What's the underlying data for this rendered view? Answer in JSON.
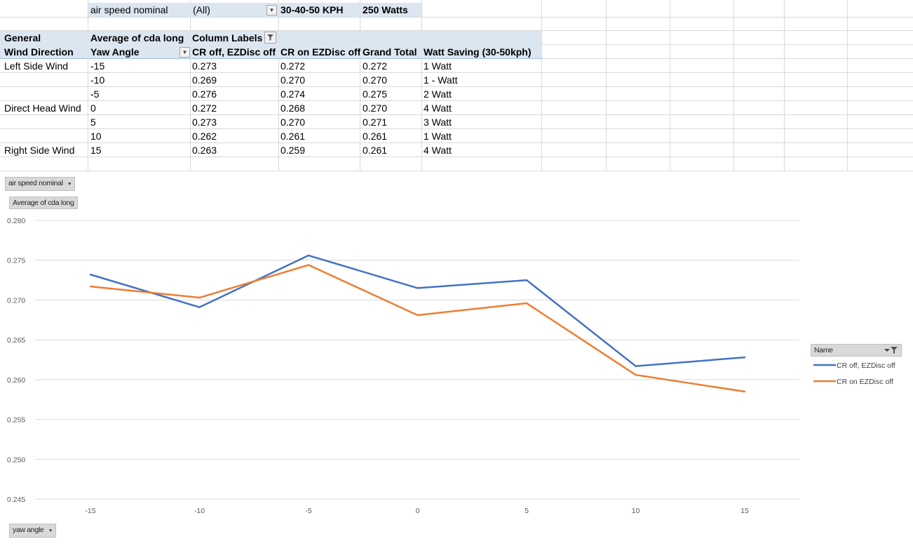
{
  "pivot_filter": {
    "field": "air speed nominal",
    "value": "(All)",
    "note1": "30-40-50 KPH",
    "note2": "250 Watts"
  },
  "pivot_header": {
    "row1": [
      "General",
      "Average of cda long",
      "Column Labels"
    ],
    "row2": [
      "Wind Direction",
      "Yaw Angle",
      "CR off, EZDisc off",
      "CR on EZDisc off",
      "Grand Total",
      "Watt Saving (30-50kph)"
    ]
  },
  "pivot_rows": [
    {
      "dir": "Left Side Wind",
      "yaw": "-15",
      "a": "0.273",
      "b": "0.272",
      "total": "0.272",
      "saving": "1 Watt"
    },
    {
      "dir": "",
      "yaw": "-10",
      "a": "0.269",
      "b": "0.270",
      "total": "0.270",
      "saving": "1 - Watt"
    },
    {
      "dir": "",
      "yaw": "-5",
      "a": "0.276",
      "b": "0.274",
      "total": "0.275",
      "saving": "2 Watt"
    },
    {
      "dir": "Direct Head Wind",
      "yaw": "0",
      "a": "0.272",
      "b": "0.268",
      "total": "0.270",
      "saving": "4 Watt"
    },
    {
      "dir": "",
      "yaw": "5",
      "a": "0.273",
      "b": "0.270",
      "total": "0.271",
      "saving": "3 Watt"
    },
    {
      "dir": "",
      "yaw": "10",
      "a": "0.262",
      "b": "0.261",
      "total": "0.261",
      "saving": "1 Watt"
    },
    {
      "dir": "Right Side Wind",
      "yaw": "15",
      "a": "0.263",
      "b": "0.259",
      "total": "0.261",
      "saving": "4 Watt"
    }
  ],
  "chart_buttons": {
    "filter": "air speed nominal",
    "value": "Average of cda long",
    "axis": "yaw angle",
    "legend_title": "Name"
  },
  "chart_data": {
    "type": "line",
    "categories": [
      "-15",
      "-10",
      "-5",
      "0",
      "5",
      "10",
      "15"
    ],
    "series": [
      {
        "name": "CR off, EZDisc off",
        "color": "#4472c4",
        "values": [
          0.2732,
          0.2691,
          0.2756,
          0.2715,
          0.2725,
          0.2617,
          0.2628
        ]
      },
      {
        "name": "CR on EZDisc off",
        "color": "#ed7d31",
        "values": [
          0.2717,
          0.2703,
          0.2744,
          0.2681,
          0.2696,
          0.2606,
          0.2585
        ]
      }
    ],
    "yticks": [
      "0.280",
      "0.275",
      "0.270",
      "0.265",
      "0.260",
      "0.255",
      "0.250",
      "0.245"
    ],
    "ylim": [
      0.245,
      0.28
    ],
    "grid": true,
    "legend": "right"
  }
}
